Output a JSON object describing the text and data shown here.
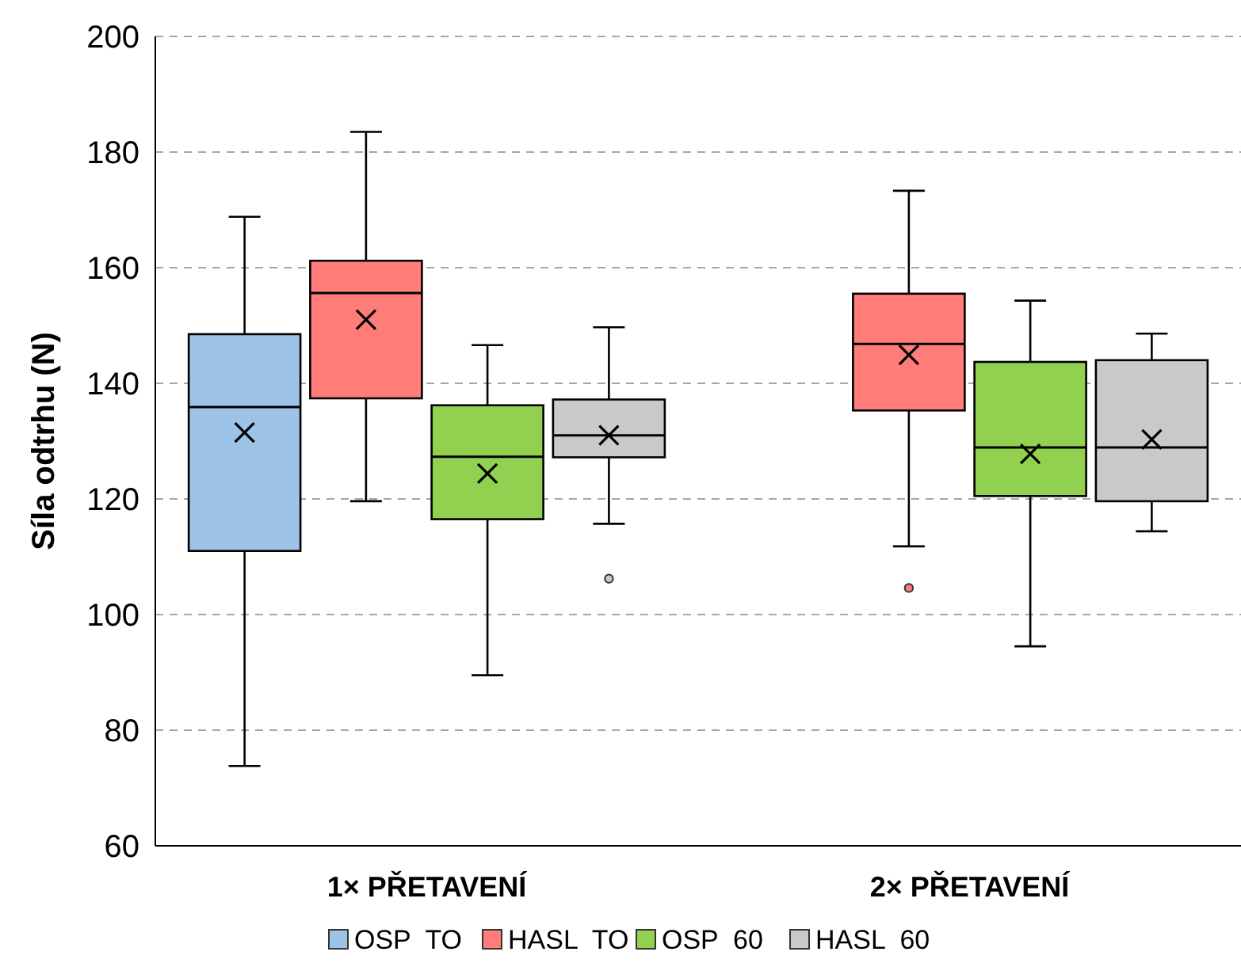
{
  "chart_data": {
    "type": "box",
    "ylabel": "Síla odtrhu (N)",
    "categories": [
      "1× PŘETAVENÍ",
      "2× PŘETAVENÍ"
    ],
    "ylim": [
      60,
      200
    ],
    "yticks": [
      60,
      80,
      100,
      120,
      140,
      160,
      180,
      200
    ],
    "grid": "y",
    "legend": "bottom",
    "marker": "cross",
    "series": [
      {
        "name": "OSP  TO",
        "color": "#9dc3e6",
        "boxes": [
          {
            "low": 73.8,
            "q1": 111,
            "median": 135.9,
            "q3": 148.5,
            "high": 168.8,
            "mean": 131.5
          },
          null
        ]
      },
      {
        "name": "HASL  TO",
        "color": "#ff7c78",
        "boxes": [
          {
            "low": 119.6,
            "q1": 137.4,
            "median": 155.6,
            "q3": 161.2,
            "high": 183.5,
            "mean": 151
          },
          {
            "low": 111.8,
            "q1": 135.3,
            "median": 146.8,
            "q3": 155.5,
            "high": 173.3,
            "mean": 144.9,
            "outliers": [
              104.6
            ]
          }
        ]
      },
      {
        "name": "OSP  60",
        "color": "#92d050",
        "boxes": [
          {
            "low": 89.5,
            "q1": 116.5,
            "median": 127.3,
            "q3": 136.2,
            "high": 146.6,
            "mean": 124.4
          },
          {
            "low": 94.5,
            "q1": 120.5,
            "median": 128.9,
            "q3": 143.7,
            "high": 154.3,
            "mean": 127.8
          }
        ]
      },
      {
        "name": "HASL  60",
        "color": "#c9c9c9",
        "boxes": [
          {
            "low": 115.7,
            "q1": 127.2,
            "median": 131,
            "q3": 137.2,
            "high": 149.7,
            "mean": 131,
            "outliers": [
              106.2
            ]
          },
          {
            "low": 114.4,
            "q1": 119.6,
            "median": 128.9,
            "q3": 144,
            "high": 148.6,
            "mean": 130.3
          }
        ]
      }
    ]
  }
}
